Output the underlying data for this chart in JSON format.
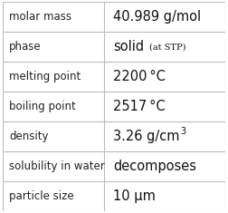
{
  "rows": [
    {
      "label": "molar mass",
      "value": "40.989 g/mol",
      "type": "normal"
    },
    {
      "label": "phase",
      "value": "solid",
      "type": "phase",
      "extra": "(at STP)"
    },
    {
      "label": "melting point",
      "value": "2200 °C",
      "type": "normal"
    },
    {
      "label": "boiling point",
      "value": "2517 °C",
      "type": "normal"
    },
    {
      "label": "density",
      "value": "3.26 g/cm",
      "type": "super",
      "superscript": "3"
    },
    {
      "label": "solubility in water",
      "value": "decomposes",
      "type": "normal"
    },
    {
      "label": "particle size",
      "value": "10 μm",
      "type": "normal"
    }
  ],
  "col_split": 0.455,
  "background": "#ffffff",
  "border_color": "#bbbbbb",
  "label_color": "#222222",
  "value_color": "#111111",
  "label_fontsize": 8.5,
  "value_fontsize": 10.5,
  "small_fontsize": 7.0,
  "super_fontsize": 7.0,
  "fig_width": 2.52,
  "fig_height": 2.35,
  "dpi": 100
}
